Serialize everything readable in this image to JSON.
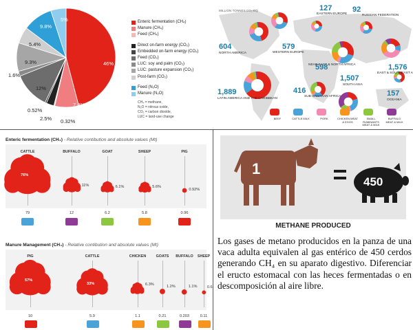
{
  "pie_chart": {
    "slices": [
      {
        "label": "46%",
        "value": 46,
        "color": "#e2231a"
      },
      {
        "label": "7.8%",
        "value": 7.8,
        "color": "#f07d80"
      },
      {
        "label": "0.32%",
        "value": 0.32,
        "color": "#f7b8b3"
      },
      {
        "label": "2.5%",
        "value": 2.5,
        "color": "#222222"
      },
      {
        "label": "0.52%",
        "value": 0.52,
        "color": "#444444"
      },
      {
        "label": "12%",
        "value": 12,
        "color": "#6d6d6d"
      },
      {
        "label": "1.6%",
        "value": 1.6,
        "color": "#8a8a8a"
      },
      {
        "label": "9.3%",
        "value": 9.3,
        "color": "#a6a6a6"
      },
      {
        "label": "5.4%",
        "value": 5.4,
        "color": "#cfcfcf"
      },
      {
        "label": "9.8%",
        "value": 9.8,
        "color": "#2f9fd8"
      },
      {
        "label": "5%",
        "value": 5,
        "color": "#8fcdee"
      }
    ],
    "legend": [
      {
        "text": "Enteric fermentation (CH₄)",
        "color": "#e2231a"
      },
      {
        "text": "Manure (CH₄)",
        "color": "#f07d80"
      },
      {
        "text": "Feed (CH₄)",
        "color": "#f7b8b3"
      },
      {
        "text": "Direct on-farm energy (CO₂)",
        "color": "#222222"
      },
      {
        "text": "Embedded on-farm energy (CO₂)",
        "color": "#444444"
      },
      {
        "text": "Feed (CO₂)",
        "color": "#6d6d6d"
      },
      {
        "text": "LUC: soy and palm (CO₂)",
        "color": "#8a8a8a"
      },
      {
        "text": "LUC: pasture expansion (CO₂)",
        "color": "#a6a6a6"
      },
      {
        "text": "Post-farm (CO₂)",
        "color": "#cfcfcf"
      },
      {
        "text": "Feed (N₂O)",
        "color": "#2f9fd8"
      },
      {
        "text": "Manure (N₂O)",
        "color": "#8fcdee"
      }
    ],
    "notes": [
      "CH₄ = methane,",
      "N₂O = nitrous oxide,",
      "CO₂ = carbon dioxide,",
      "LUC = land-use change"
    ]
  },
  "map": {
    "unit": "MILLION TONNES CO₂-EQ",
    "regions": [
      {
        "value": "604",
        "name": "NORTH AMERICA"
      },
      {
        "value": "579",
        "name": "WESTERN EUROPE"
      },
      {
        "value": "127",
        "name": "EASTERN EUROPE"
      },
      {
        "value": "92",
        "name": "RUSSIAN FEDERATION"
      },
      {
        "value": "598",
        "name": "NEAR EAST & NORTH AFRICA"
      },
      {
        "value": "1,576",
        "name": "EAST & SOUTHEAST ASIA"
      },
      {
        "value": "1,889",
        "name": "LATIN AMERICA AND THE CARIBBEAN"
      },
      {
        "value": "416",
        "name": "SUB-SAHARAN AFRICA"
      },
      {
        "value": "1,507",
        "name": "SOUTH ASIA"
      },
      {
        "value": "157",
        "name": "OCEANIA"
      }
    ],
    "legend": [
      {
        "label": "BEEF",
        "color": "#e2231a"
      },
      {
        "label": "CATTLE MILK",
        "color": "#4aa3d8"
      },
      {
        "label": "PORK",
        "color": "#f28ab2"
      },
      {
        "label": "CHICKEN MEAT & EGGS",
        "color": "#f7941d"
      },
      {
        "label": "SMALL RUMINANTS MEAT & MILK",
        "color": "#8dc63f"
      },
      {
        "label": "BUFFALO MEAT & MILK",
        "color": "#8e3a96"
      }
    ]
  },
  "enteric": {
    "title": "Enteric fermentation (CH₄)",
    "subtitle": " - Relative contibution and absolute values (Mt)",
    "animals": [
      {
        "name": "CATTLE",
        "pct": "76%",
        "value": "79",
        "share": 76,
        "icon": "cattle-icon",
        "color": "#4aa3d8"
      },
      {
        "name": "BUFFALO",
        "pct": "11%",
        "value": "12",
        "share": 11,
        "icon": "buffalo-icon",
        "color": "#8e3a96"
      },
      {
        "name": "GOAT",
        "pct": "6.1%",
        "value": "6.2",
        "share": 6.1,
        "icon": "goat-icon",
        "color": "#8dc63f"
      },
      {
        "name": "SHEEP",
        "pct": "5.6%",
        "value": "5.8",
        "share": 5.6,
        "icon": "sheep-icon",
        "color": "#f7941d"
      },
      {
        "name": "PIG",
        "pct": "0.92%",
        "value": "0.96",
        "share": 0.92,
        "icon": "pig-icon",
        "color": "#e2231a"
      }
    ]
  },
  "manure": {
    "title": "Manure Management (CH₄)",
    "subtitle": " - Relative contibution and absolute values (Mt)",
    "animals": [
      {
        "name": "PIG",
        "pct": "57%",
        "value": "10",
        "share": 57,
        "icon": "pig-icon",
        "color": "#e2231a"
      },
      {
        "name": "CATTLE",
        "pct": "33%",
        "value": "5.9",
        "share": 33,
        "icon": "cattle-icon",
        "color": "#4aa3d8"
      },
      {
        "name": "CHICKEN",
        "pct": "6.3%",
        "value": "1.1",
        "share": 6.3,
        "icon": "chicken-icon",
        "color": "#f7941d"
      },
      {
        "name": "GOATS",
        "pct": "1.2%",
        "value": "0.21",
        "share": 1.2,
        "icon": "goat-icon",
        "color": "#8dc63f"
      },
      {
        "name": "BUFFALO",
        "pct": "1.1%",
        "value": "0.203",
        "share": 1.1,
        "icon": "buffalo-icon",
        "color": "#8e3a96"
      },
      {
        "name": "SHEEP",
        "pct": "0.63%",
        "value": "0.11",
        "share": 0.63,
        "icon": "sheep-icon",
        "color": "#f7941d"
      }
    ]
  },
  "cow_panel": {
    "cow_number": "1",
    "equals": "=",
    "pig_number": "450",
    "caption": "METHANE PRODUCED",
    "text": "Los gases de metano producidos en la panza de una vaca adulta equivalen al gas entérico de 450 cerdos generando CH₄ en su aparato digestivo. Diferenciar el eructo estomacal con las heces fermentadas o en descomposición al aire libre."
  }
}
